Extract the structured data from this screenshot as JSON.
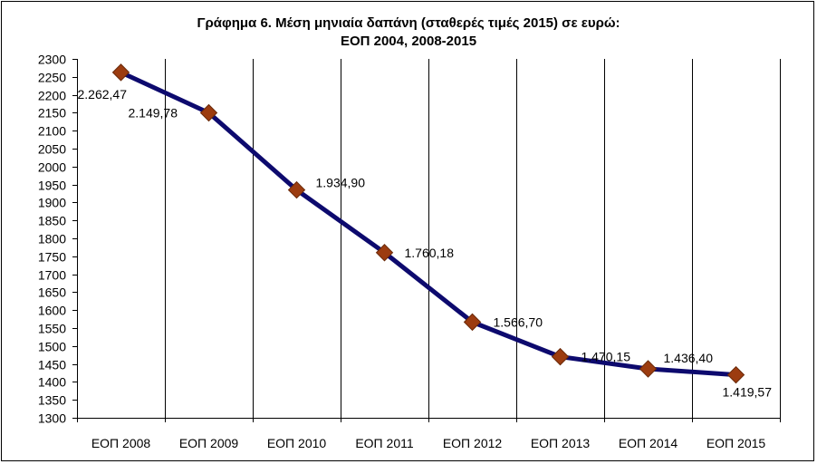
{
  "chart_data": {
    "type": "line",
    "title_line1": "Γράφημα 6. Μέση μηνιαία δαπάνη (σταθερές τιμές 2015) σε ευρώ:",
    "title_line2": "ΕΟΠ 2004, 2008-2015",
    "categories": [
      "ΕΟΠ 2008",
      "ΕΟΠ 2009",
      "ΕΟΠ 2010",
      "ΕΟΠ 2011",
      "ΕΟΠ 2012",
      "ΕΟΠ 2013",
      "ΕΟΠ 2014",
      "ΕΟΠ 2015"
    ],
    "values": [
      2262.47,
      2149.78,
      1934.9,
      1760.18,
      1566.7,
      1470.15,
      1436.4,
      1419.57
    ],
    "data_labels": [
      "2.262,47",
      "2.149,78",
      "1.934,90",
      "1.760,18",
      "1.566,70",
      "1.470,15",
      "1.436,40",
      "1.419,57"
    ],
    "ylim": [
      1300,
      2300
    ],
    "yticks": [
      1300,
      1350,
      1400,
      1450,
      1500,
      1550,
      1600,
      1650,
      1700,
      1750,
      1800,
      1850,
      1900,
      1950,
      2000,
      2050,
      2100,
      2150,
      2200,
      2250,
      2300
    ],
    "xlabel": "",
    "ylabel": "",
    "grid": "vertical",
    "legend": "none",
    "colors": {
      "line": "#0d0a6e",
      "marker": "#9c3c10",
      "marker_edge": "#6a2a0a",
      "grid": "#000000"
    }
  }
}
